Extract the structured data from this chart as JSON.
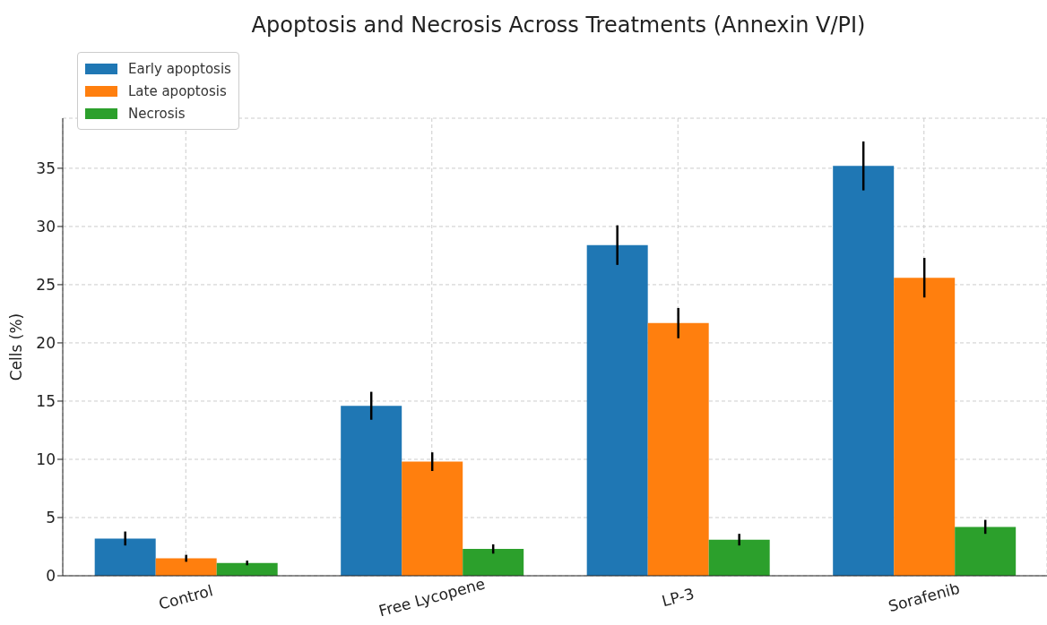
{
  "chart_data": {
    "type": "bar",
    "title": "Apoptosis and Necrosis Across Treatments (Annexin V/PI)",
    "ylabel": "Cells (%)",
    "categories": [
      "Control",
      "Free Lycopene",
      "LP-3",
      "Sorafenib"
    ],
    "series": [
      {
        "name": "Early apoptosis",
        "color": "#1f77b4",
        "values": [
          3.2,
          14.6,
          28.4,
          35.2
        ],
        "errors": [
          0.6,
          1.2,
          1.7,
          2.1
        ]
      },
      {
        "name": "Late apoptosis",
        "color": "#ff7f0e",
        "values": [
          1.5,
          9.8,
          21.7,
          25.6
        ],
        "errors": [
          0.3,
          0.8,
          1.3,
          1.7
        ]
      },
      {
        "name": "Necrosis",
        "color": "#2ca02c",
        "values": [
          1.1,
          2.3,
          3.1,
          4.2
        ],
        "errors": [
          0.2,
          0.4,
          0.5,
          0.6
        ]
      }
    ],
    "ylim": [
      0,
      39.3
    ],
    "yticks": [
      0,
      5,
      10,
      15,
      20,
      25,
      30,
      35
    ],
    "grid": true,
    "legend": "top left"
  }
}
